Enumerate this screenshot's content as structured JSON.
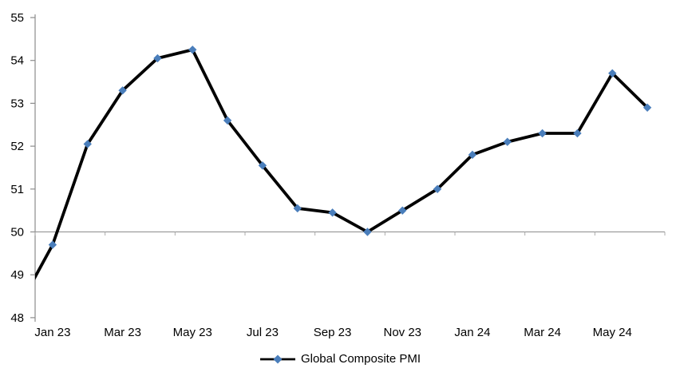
{
  "chart_data": {
    "type": "line",
    "title": "",
    "legend": {
      "label": "Global Composite PMI",
      "position": "bottom-center"
    },
    "categories": [
      "Dec 22",
      "Jan 23",
      "Feb 23",
      "Mar 23",
      "Apr 23",
      "May 23",
      "Jun 23",
      "Jul 23",
      "Aug 23",
      "Sep 23",
      "Oct 23",
      "Nov 23",
      "Dec 23",
      "Jan 24",
      "Feb 24",
      "Mar 24",
      "Apr 24",
      "May 24",
      "Jun 24"
    ],
    "series": [
      {
        "name": "Global Composite PMI",
        "values": [
          48.2,
          49.7,
          52.05,
          53.3,
          54.05,
          54.25,
          52.6,
          51.55,
          50.55,
          50.45,
          50.0,
          50.5,
          51.0,
          51.8,
          52.1,
          52.3,
          52.3,
          53.7,
          52.9
        ]
      }
    ],
    "first_point_clipped_at_left_axis": true,
    "x_tick_labels": [
      "Jan 23",
      "Mar 23",
      "May 23",
      "Jul 23",
      "Sep 23",
      "Nov 23",
      "Jan 24",
      "Mar 24",
      "May 24"
    ],
    "y_ticks": [
      "48",
      "49",
      "50",
      "51",
      "52",
      "53",
      "54",
      "55"
    ],
    "ylim": [
      48,
      55
    ],
    "x_axis_crosses_at_y": 50,
    "grid": "off",
    "marker_shape": "diamond",
    "colors": {
      "line": "#000000",
      "marker": "#4A7EBB",
      "axis": "#8C8C8C",
      "minor_tick": "#ABABAB",
      "text": "#000000",
      "background": "#FFFFFF"
    }
  }
}
